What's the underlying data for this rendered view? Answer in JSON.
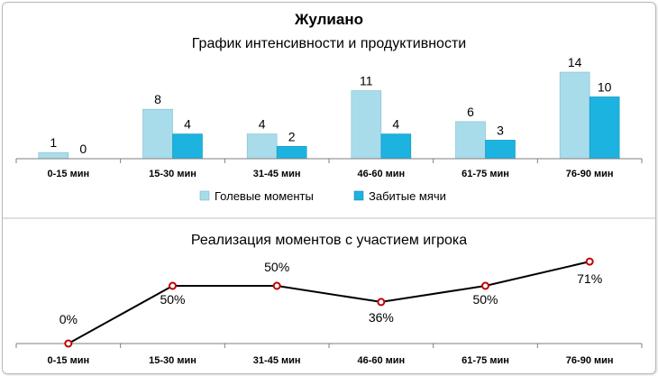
{
  "chart_data": [
    {
      "type": "bar",
      "title": "Жулиано",
      "subtitle": "График интенсивности и продуктивности",
      "categories": [
        "0-15 мин",
        "15-30 мин",
        "31-45 мин",
        "46-60 мин",
        "61-75 мин",
        "76-90 мин"
      ],
      "series": [
        {
          "name": "Голевые моменты",
          "values": [
            1,
            8,
            4,
            11,
            6,
            14
          ],
          "color": "#a9dcea"
        },
        {
          "name": "Забитые мячи",
          "values": [
            0,
            4,
            2,
            4,
            3,
            10
          ],
          "color": "#1cb3e0"
        }
      ],
      "ylim": [
        0,
        14
      ],
      "legend": "bottom",
      "grid": false
    },
    {
      "type": "line",
      "title": "Реализация моментов с участием игрока",
      "categories": [
        "0-15 мин",
        "15-30 мин",
        "31-45 мин",
        "46-60 мин",
        "61-75 мин",
        "76-90 мин"
      ],
      "series": [
        {
          "values": [
            0,
            50,
            50,
            36,
            50,
            71
          ],
          "labels": [
            "0%",
            "50%",
            "50%",
            "36%",
            "50%",
            "71%"
          ],
          "color": "#000000",
          "marker_color": "#c00000"
        }
      ],
      "ylim": [
        0,
        100
      ],
      "grid": false
    }
  ]
}
